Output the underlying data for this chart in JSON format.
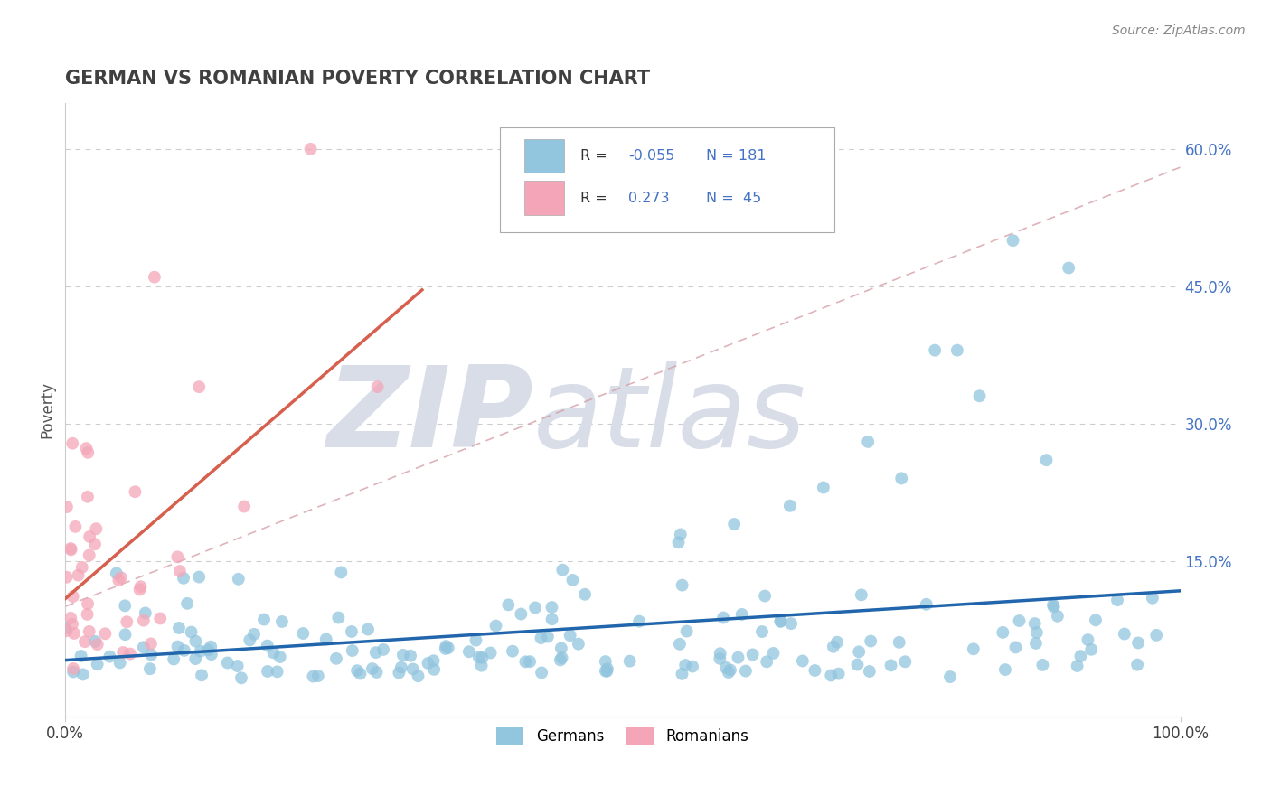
{
  "title": "GERMAN VS ROMANIAN POVERTY CORRELATION CHART",
  "source": "Source: ZipAtlas.com",
  "ylabel": "Poverty",
  "xlim": [
    0,
    1
  ],
  "ylim": [
    -0.02,
    0.65
  ],
  "yticks": [
    0.15,
    0.3,
    0.45,
    0.6
  ],
  "ytick_labels": [
    "15.0%",
    "30.0%",
    "45.0%",
    "60.0%"
  ],
  "xtick_labels": [
    "0.0%",
    "100.0%"
  ],
  "german_R": -0.055,
  "german_N": 181,
  "romanian_R": 0.273,
  "romanian_N": 45,
  "blue_color": "#92c5de",
  "pink_color": "#f4a6b8",
  "blue_line_color": "#2166ac",
  "pink_line_color": "#d6604d",
  "dashed_line_color": "#d6a0a8",
  "watermark_color": "#d8dde8",
  "background_color": "#ffffff",
  "grid_color": "#b8b8b8",
  "title_color": "#404040",
  "axis_label_color": "#555555",
  "tick_color_right": "#4472c4",
  "legend_R_color": "#4472c4",
  "title_fontsize": 15,
  "source_fontsize": 10,
  "tick_fontsize": 12,
  "ylabel_fontsize": 12
}
